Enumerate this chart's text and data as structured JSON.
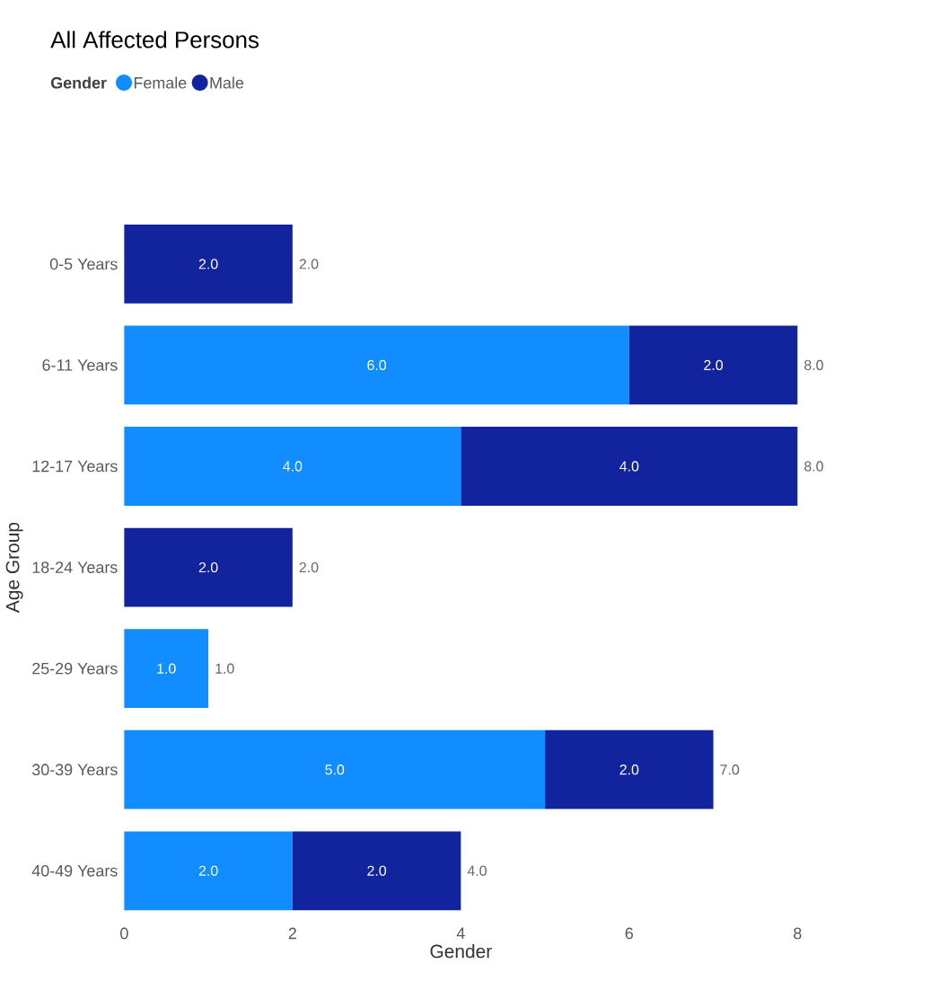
{
  "chart_data": {
    "type": "bar",
    "orientation": "horizontal",
    "stacked": true,
    "title": "All Affected Persons",
    "legend_title": "Gender",
    "legend": "top left",
    "xlabel": "Gender",
    "ylabel": "Age Group",
    "categories": [
      "0-5 Years",
      "6-11 Years",
      "12-17 Years",
      "18-24 Years",
      "25-29 Years",
      "30-39 Years",
      "40-49 Years"
    ],
    "series": [
      {
        "name": "Female",
        "color": "#118dff",
        "values": [
          null,
          6,
          4,
          null,
          1,
          5,
          2
        ],
        "value_labels": [
          null,
          "6.0",
          "4.0",
          null,
          "1.0",
          "5.0",
          "2.0"
        ]
      },
      {
        "name": "Male",
        "color": "#12239e",
        "values": [
          2,
          2,
          4,
          2,
          null,
          2,
          2
        ],
        "value_labels": [
          "2.0",
          "2.0",
          "4.0",
          "2.0",
          null,
          "2.0",
          "2.0"
        ]
      }
    ],
    "totals": [
      "2.0",
      "8.0",
      "8.0",
      "2.0",
      "1.0",
      "7.0",
      "4.0"
    ],
    "xlim": [
      0,
      8
    ],
    "xticks": [
      0,
      2,
      4,
      6,
      8
    ],
    "grid": false
  }
}
